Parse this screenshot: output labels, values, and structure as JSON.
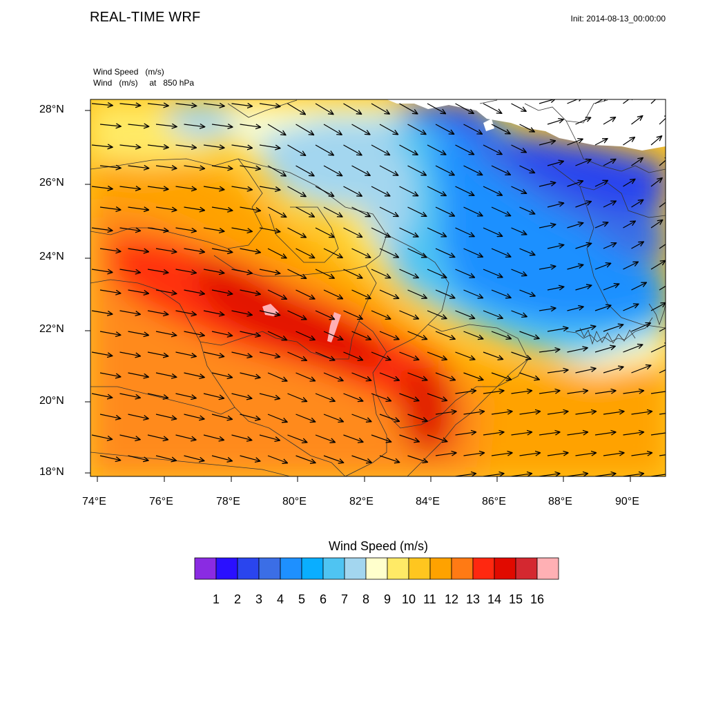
{
  "header": {
    "title": "REAL-TIME WRF",
    "init": "Init: 2014-08-13_00:00:00",
    "subtitle_line1": "Wind Speed   (m/s)",
    "subtitle_line2": "Wind   (m/s)     at   850 hPa"
  },
  "axes": {
    "lat_labels": [
      "28°N",
      "26°N",
      "24°N",
      "22°N",
      "20°N",
      "18°N"
    ],
    "lon_labels": [
      "74°E",
      "76°E",
      "78°E",
      "80°E",
      "82°E",
      "84°E",
      "86°E",
      "88°E",
      "90°E"
    ],
    "lat_range": [
      17.9,
      28.3
    ],
    "lon_range": [
      73.8,
      91.1
    ]
  },
  "colorbar": {
    "title": "Wind Speed  (m/s)",
    "levels": [
      "1",
      "2",
      "3",
      "4",
      "5",
      "6",
      "7",
      "8",
      "9",
      "10",
      "11",
      "12",
      "13",
      "14",
      "15",
      "16"
    ],
    "colors": [
      "#8a2be2",
      "#2a10ff",
      "#2a45ee",
      "#3b6ee6",
      "#1e90ff",
      "#0aaeff",
      "#4fc4f2",
      "#a3d6ef",
      "#ffffcc",
      "#ffea66",
      "#ffc61f",
      "#ffa200",
      "#ff7a14",
      "#ff2810",
      "#e10a00",
      "#d42830",
      "#ffb0b4"
    ]
  },
  "map": {
    "wind_direction": "predominantly west to east, veering south-east over central India and north-east over the Bay of Bengal",
    "icons": [
      "wind-arrow-icon"
    ]
  }
}
